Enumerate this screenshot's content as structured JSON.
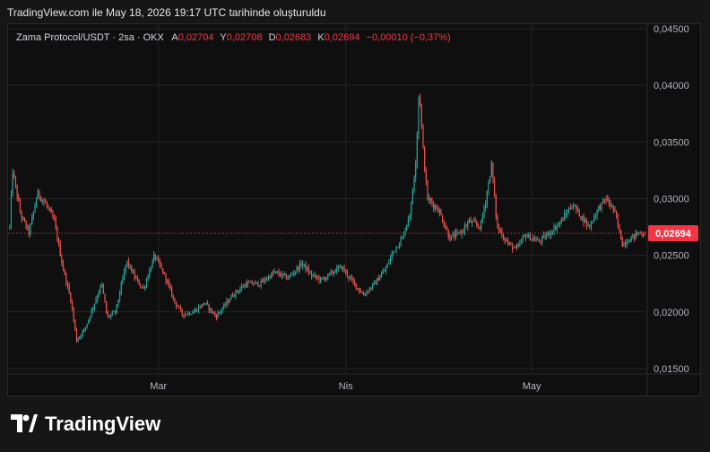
{
  "header": {
    "caption": "TradingView.com ile May 18, 2026 19:17 UTC tarihinde oluşturuldu"
  },
  "legend": {
    "symbol": "Zama Protocol/USDT · 2sa · OKX",
    "open_label": "A",
    "open_value": "0,02704",
    "high_label": "Y",
    "high_value": "0,02708",
    "low_label": "D",
    "low_value": "0,02683",
    "close_label": "K",
    "close_value": "0,02694",
    "change": "−0,00010 (−0,37%)"
  },
  "brand": {
    "name": "TradingView"
  },
  "colors": {
    "up": "#26a69a",
    "down": "#ef5350",
    "price_line": "#f23645",
    "grid": "#242424",
    "axis_text": "#b2b5be"
  },
  "chart_data": {
    "type": "candlestick",
    "ylim": [
      0.0146,
      0.0454
    ],
    "yticks": [
      0.015,
      0.02,
      0.025,
      0.03,
      0.035,
      0.04,
      0.045
    ],
    "ytick_labels": [
      "0,01500",
      "0,02000",
      "0,02500",
      "0,03000",
      "0,03500",
      "0,04000",
      "0,04500"
    ],
    "xticks": [
      {
        "label": "Mar",
        "index": 100
      },
      {
        "label": "Nis",
        "index": 226
      },
      {
        "label": "May",
        "index": 351
      }
    ],
    "last_price": 0.02694,
    "last_price_label": "0,02694",
    "n_candles": 428,
    "path": [
      [
        0,
        0.0275
      ],
      [
        2,
        0.0325
      ],
      [
        8,
        0.0285
      ],
      [
        14,
        0.027
      ],
      [
        20,
        0.0305
      ],
      [
        26,
        0.0295
      ],
      [
        32,
        0.028
      ],
      [
        38,
        0.024
      ],
      [
        44,
        0.021
      ],
      [
        48,
        0.0175
      ],
      [
        54,
        0.0185
      ],
      [
        60,
        0.0205
      ],
      [
        66,
        0.0225
      ],
      [
        70,
        0.0195
      ],
      [
        76,
        0.02
      ],
      [
        84,
        0.0245
      ],
      [
        90,
        0.023
      ],
      [
        96,
        0.022
      ],
      [
        104,
        0.025
      ],
      [
        112,
        0.023
      ],
      [
        118,
        0.021
      ],
      [
        124,
        0.0198
      ],
      [
        132,
        0.02
      ],
      [
        140,
        0.0208
      ],
      [
        148,
        0.0196
      ],
      [
        154,
        0.0205
      ],
      [
        160,
        0.0215
      ],
      [
        170,
        0.0225
      ],
      [
        180,
        0.0225
      ],
      [
        190,
        0.0235
      ],
      [
        200,
        0.023
      ],
      [
        210,
        0.0243
      ],
      [
        216,
        0.0233
      ],
      [
        224,
        0.0228
      ],
      [
        232,
        0.0235
      ],
      [
        238,
        0.024
      ],
      [
        246,
        0.0227
      ],
      [
        254,
        0.0215
      ],
      [
        262,
        0.0225
      ],
      [
        270,
        0.0238
      ],
      [
        276,
        0.0255
      ],
      [
        282,
        0.0265
      ],
      [
        288,
        0.029
      ],
      [
        292,
        0.034
      ],
      [
        294,
        0.04
      ],
      [
        297,
        0.034
      ],
      [
        300,
        0.03
      ],
      [
        304,
        0.0295
      ],
      [
        308,
        0.029
      ],
      [
        316,
        0.0265
      ],
      [
        324,
        0.027
      ],
      [
        330,
        0.028
      ],
      [
        338,
        0.0275
      ],
      [
        342,
        0.03
      ],
      [
        346,
        0.033
      ],
      [
        350,
        0.0275
      ],
      [
        358,
        0.026
      ],
      [
        364,
        0.0255
      ],
      [
        370,
        0.0268
      ],
      [
        380,
        0.0262
      ],
      [
        388,
        0.027
      ],
      [
        396,
        0.028
      ],
      [
        404,
        0.0295
      ],
      [
        410,
        0.0285
      ],
      [
        416,
        0.0275
      ],
      [
        422,
        0.029
      ],
      [
        428,
        0.03
      ],
      [
        434,
        0.029
      ],
      [
        440,
        0.026
      ],
      [
        446,
        0.0265
      ],
      [
        452,
        0.027
      ],
      [
        456,
        0.02694
      ]
    ]
  }
}
